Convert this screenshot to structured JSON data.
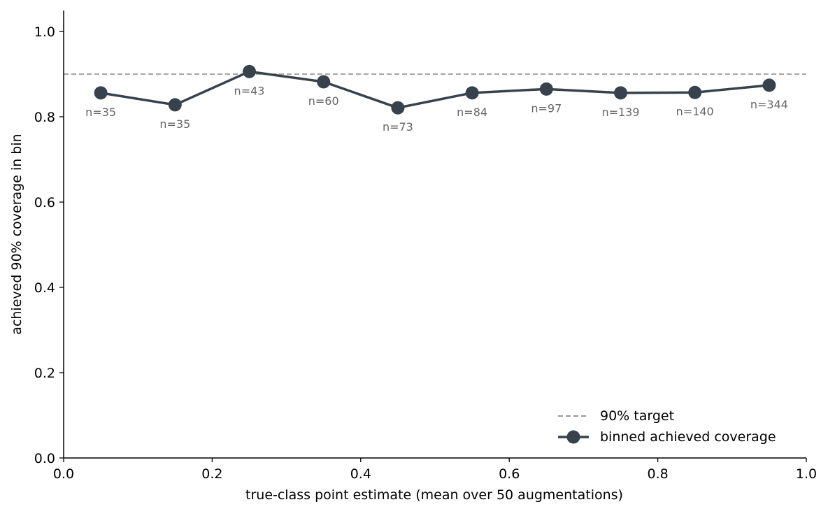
{
  "chart_data": {
    "type": "line",
    "xlabel": "true-class point estimate (mean over 50 augmentations)",
    "ylabel": "achieved 90% coverage in bin",
    "xlim": [
      0.0,
      1.0
    ],
    "ylim": [
      0.0,
      1.05
    ],
    "x_ticks": [
      "0.0",
      "0.2",
      "0.4",
      "0.6",
      "0.8",
      "1.0"
    ],
    "y_ticks": [
      "0.0",
      "0.2",
      "0.4",
      "0.6",
      "0.8",
      "1.0"
    ],
    "grid": false,
    "legend_position": "lower-right",
    "target": {
      "name": "90% target",
      "y": 0.9,
      "style": "dashed",
      "color": "#999999"
    },
    "series": [
      {
        "name": "binned achieved coverage",
        "color": "#37424d",
        "x": [
          0.05,
          0.15,
          0.25,
          0.35,
          0.45,
          0.55,
          0.65,
          0.75,
          0.85,
          0.95
        ],
        "y": [
          0.856,
          0.828,
          0.906,
          0.882,
          0.821,
          0.856,
          0.865,
          0.856,
          0.857,
          0.874
        ],
        "labels": [
          "n=35",
          "n=35",
          "n=43",
          "n=60",
          "n=73",
          "n=84",
          "n=97",
          "n=139",
          "n=140",
          "n=344"
        ]
      }
    ]
  }
}
